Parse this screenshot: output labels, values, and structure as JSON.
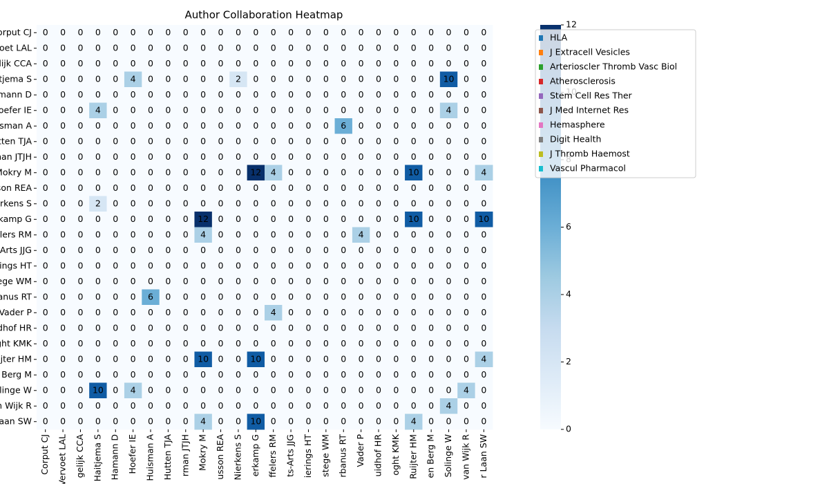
{
  "chart_data": {
    "type": "heatmap",
    "title": "Author Collaboration Heatmap",
    "categories": [
      "Corput CJ",
      "Vervoet LAL",
      "gelijk CCA",
      "Haitjema S",
      "Hamann D",
      "Hoefer IE",
      "Huisman A",
      "Hutten TJA",
      "rman JTJH",
      "Mokry M",
      "usson REA",
      "Nierkens S",
      "erkamp G",
      "ffelers RM",
      "ts-Arts JJG",
      "ierings HT",
      "stege WM",
      "rbanus RT",
      "Vader P",
      "uidhof HR",
      "oght KMK",
      "Ruijter HM",
      "en Berg M",
      "Solinge W",
      "van Wijk R",
      "r Laan SW"
    ],
    "matrix": [
      [
        0,
        0,
        0,
        0,
        0,
        0,
        0,
        0,
        0,
        0,
        0,
        0,
        0,
        0,
        0,
        0,
        0,
        0,
        0,
        0,
        0,
        0,
        0,
        0,
        0,
        0
      ],
      [
        0,
        0,
        0,
        0,
        0,
        0,
        0,
        0,
        0,
        0,
        0,
        0,
        0,
        0,
        0,
        0,
        0,
        0,
        0,
        0,
        0,
        0,
        0,
        0,
        0,
        0
      ],
      [
        0,
        0,
        0,
        0,
        0,
        0,
        0,
        0,
        0,
        0,
        0,
        0,
        0,
        0,
        0,
        0,
        0,
        0,
        0,
        0,
        0,
        0,
        0,
        0,
        0,
        0
      ],
      [
        0,
        0,
        0,
        0,
        0,
        4,
        0,
        0,
        0,
        0,
        0,
        2,
        0,
        0,
        0,
        0,
        0,
        0,
        0,
        0,
        0,
        0,
        0,
        10,
        0,
        0
      ],
      [
        0,
        0,
        0,
        0,
        0,
        0,
        0,
        0,
        0,
        0,
        0,
        0,
        0,
        0,
        0,
        0,
        0,
        0,
        0,
        0,
        0,
        0,
        0,
        0,
        0,
        0
      ],
      [
        0,
        0,
        0,
        4,
        0,
        0,
        0,
        0,
        0,
        0,
        0,
        0,
        0,
        0,
        0,
        0,
        0,
        0,
        0,
        0,
        0,
        0,
        0,
        4,
        0,
        0
      ],
      [
        0,
        0,
        0,
        0,
        0,
        0,
        0,
        0,
        0,
        0,
        0,
        0,
        0,
        0,
        0,
        0,
        0,
        6,
        0,
        0,
        0,
        0,
        0,
        0,
        0,
        0
      ],
      [
        0,
        0,
        0,
        0,
        0,
        0,
        0,
        0,
        0,
        0,
        0,
        0,
        0,
        0,
        0,
        0,
        0,
        0,
        0,
        0,
        0,
        0,
        0,
        0,
        0,
        0
      ],
      [
        0,
        0,
        0,
        0,
        0,
        0,
        0,
        0,
        0,
        0,
        0,
        0,
        0,
        0,
        0,
        0,
        0,
        0,
        0,
        0,
        0,
        0,
        0,
        0,
        0,
        0
      ],
      [
        0,
        0,
        0,
        0,
        0,
        0,
        0,
        0,
        0,
        0,
        0,
        0,
        12,
        4,
        0,
        0,
        0,
        0,
        0,
        0,
        0,
        10,
        0,
        0,
        0,
        4
      ],
      [
        0,
        0,
        0,
        0,
        0,
        0,
        0,
        0,
        0,
        0,
        0,
        0,
        0,
        0,
        0,
        0,
        0,
        0,
        0,
        0,
        0,
        0,
        0,
        0,
        0,
        0
      ],
      [
        0,
        0,
        0,
        2,
        0,
        0,
        0,
        0,
        0,
        0,
        0,
        0,
        0,
        0,
        0,
        0,
        0,
        0,
        0,
        0,
        0,
        0,
        0,
        0,
        0,
        0
      ],
      [
        0,
        0,
        0,
        0,
        0,
        0,
        0,
        0,
        0,
        12,
        0,
        0,
        0,
        0,
        0,
        0,
        0,
        0,
        0,
        0,
        0,
        10,
        0,
        0,
        0,
        10
      ],
      [
        0,
        0,
        0,
        0,
        0,
        0,
        0,
        0,
        0,
        4,
        0,
        0,
        0,
        0,
        0,
        0,
        0,
        0,
        4,
        0,
        0,
        0,
        0,
        0,
        0,
        0
      ],
      [
        0,
        0,
        0,
        0,
        0,
        0,
        0,
        0,
        0,
        0,
        0,
        0,
        0,
        0,
        0,
        0,
        0,
        0,
        0,
        0,
        0,
        0,
        0,
        0,
        0,
        0
      ],
      [
        0,
        0,
        0,
        0,
        0,
        0,
        0,
        0,
        0,
        0,
        0,
        0,
        0,
        0,
        0,
        0,
        0,
        0,
        0,
        0,
        0,
        0,
        0,
        0,
        0,
        0
      ],
      [
        0,
        0,
        0,
        0,
        0,
        0,
        0,
        0,
        0,
        0,
        0,
        0,
        0,
        0,
        0,
        0,
        0,
        0,
        0,
        0,
        0,
        0,
        0,
        0,
        0,
        0
      ],
      [
        0,
        0,
        0,
        0,
        0,
        0,
        6,
        0,
        0,
        0,
        0,
        0,
        0,
        0,
        0,
        0,
        0,
        0,
        0,
        0,
        0,
        0,
        0,
        0,
        0,
        0
      ],
      [
        0,
        0,
        0,
        0,
        0,
        0,
        0,
        0,
        0,
        0,
        0,
        0,
        0,
        4,
        0,
        0,
        0,
        0,
        0,
        0,
        0,
        0,
        0,
        0,
        0,
        0
      ],
      [
        0,
        0,
        0,
        0,
        0,
        0,
        0,
        0,
        0,
        0,
        0,
        0,
        0,
        0,
        0,
        0,
        0,
        0,
        0,
        0,
        0,
        0,
        0,
        0,
        0,
        0
      ],
      [
        0,
        0,
        0,
        0,
        0,
        0,
        0,
        0,
        0,
        0,
        0,
        0,
        0,
        0,
        0,
        0,
        0,
        0,
        0,
        0,
        0,
        0,
        0,
        0,
        0,
        0
      ],
      [
        0,
        0,
        0,
        0,
        0,
        0,
        0,
        0,
        0,
        10,
        0,
        0,
        10,
        0,
        0,
        0,
        0,
        0,
        0,
        0,
        0,
        0,
        0,
        0,
        0,
        4
      ],
      [
        0,
        0,
        0,
        0,
        0,
        0,
        0,
        0,
        0,
        0,
        0,
        0,
        0,
        0,
        0,
        0,
        0,
        0,
        0,
        0,
        0,
        0,
        0,
        0,
        0,
        0
      ],
      [
        0,
        0,
        0,
        10,
        0,
        4,
        0,
        0,
        0,
        0,
        0,
        0,
        0,
        0,
        0,
        0,
        0,
        0,
        0,
        0,
        0,
        0,
        0,
        0,
        4,
        0
      ],
      [
        0,
        0,
        0,
        0,
        0,
        0,
        0,
        0,
        0,
        0,
        0,
        0,
        0,
        0,
        0,
        0,
        0,
        0,
        0,
        0,
        0,
        0,
        0,
        4,
        0,
        0
      ],
      [
        0,
        0,
        0,
        0,
        0,
        0,
        0,
        0,
        0,
        4,
        0,
        0,
        10,
        0,
        0,
        0,
        0,
        0,
        0,
        0,
        0,
        4,
        0,
        0,
        0,
        0
      ]
    ],
    "colormap": "Blues",
    "clim": [
      0,
      12
    ],
    "cticks": [
      0,
      2,
      4,
      6,
      8,
      10,
      12
    ],
    "legend": [
      {
        "name": "HLA",
        "color": "#1f77b4"
      },
      {
        "name": "J Extracell Vesicles",
        "color": "#ff7f0e"
      },
      {
        "name": "Arterioscler Thromb Vasc Biol",
        "color": "#2ca02c"
      },
      {
        "name": "Atherosclerosis",
        "color": "#d62728"
      },
      {
        "name": "Stem Cell Res Ther",
        "color": "#9467bd"
      },
      {
        "name": "J Med Internet Res",
        "color": "#8c564b"
      },
      {
        "name": "Hemasphere",
        "color": "#e377c2"
      },
      {
        "name": "Digit Health",
        "color": "#7f7f7f"
      },
      {
        "name": "J Thromb Haemost",
        "color": "#bcbd22"
      },
      {
        "name": "Vascul Pharmacol",
        "color": "#17becf"
      }
    ]
  }
}
